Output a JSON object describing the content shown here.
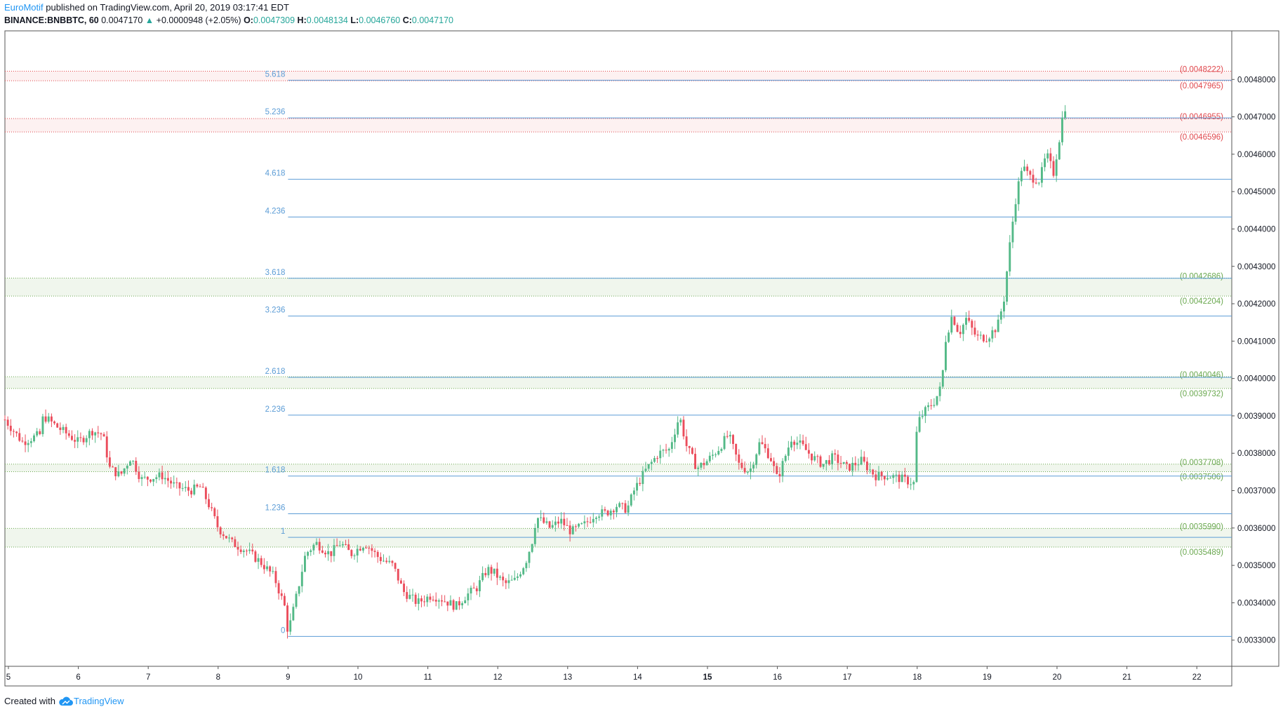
{
  "header": {
    "author": "EuroMotif",
    "published": "published on TradingView.com, April 20, 2019 03:17:41 EDT",
    "symbol": "BINANCE:BNBBTC, 60",
    "last": "0.0047170",
    "change_arrow": "▲",
    "change": "+0.0000948 (+2.05%)",
    "o_label": "O:",
    "o_value": "0.0047309",
    "h_label": "H:",
    "h_value": "0.0048134",
    "l_label": "L:",
    "l_value": "0.0046760",
    "c_label": "C:",
    "c_value": "0.0047170"
  },
  "footer": {
    "created_with": "Created with",
    "brand": "TradingView",
    "brand_icon": "tradingview-cloud-icon"
  },
  "colors": {
    "up": "#53b987",
    "down": "#eb4d5c",
    "fib_line": "#5b9cd6",
    "fib_label": "#5b9cd6",
    "red_zone": "#e0474c",
    "green_zone": "#6aa84f",
    "axis_text": "#131722"
  },
  "chart_data": {
    "type": "candlestick",
    "title": "",
    "xlabel": "",
    "ylabel": "",
    "ylim": [
      0.00323,
      0.00493
    ],
    "y_ticks": [
      0.0033,
      0.0034,
      0.0035,
      0.0036,
      0.0037,
      0.0038,
      0.0039,
      0.004,
      0.0041,
      0.0042,
      0.0043,
      0.0044,
      0.0045,
      0.0046,
      0.0047,
      0.0048
    ],
    "y_tick_labels": [
      "0.0033000",
      "0.0034000",
      "0.0035000",
      "0.0036000",
      "0.0037000",
      "0.0038000",
      "0.0039000",
      "0.0040000",
      "0.0041000",
      "0.0042000",
      "0.0043000",
      "0.0044000",
      "0.0045000",
      "0.0046000",
      "0.0047000",
      "0.0048000"
    ],
    "x_ticks": [
      {
        "label": "5",
        "day": 5,
        "bold": false
      },
      {
        "label": "6",
        "day": 6,
        "bold": false
      },
      {
        "label": "7",
        "day": 7,
        "bold": false
      },
      {
        "label": "8",
        "day": 8,
        "bold": false
      },
      {
        "label": "9",
        "day": 9,
        "bold": false
      },
      {
        "label": "10",
        "day": 10,
        "bold": false
      },
      {
        "label": "11",
        "day": 11,
        "bold": false
      },
      {
        "label": "12",
        "day": 12,
        "bold": false
      },
      {
        "label": "13",
        "day": 13,
        "bold": false
      },
      {
        "label": "14",
        "day": 14,
        "bold": false
      },
      {
        "label": "15",
        "day": 15,
        "bold": true
      },
      {
        "label": "16",
        "day": 16,
        "bold": false
      },
      {
        "label": "17",
        "day": 17,
        "bold": false
      },
      {
        "label": "18",
        "day": 18,
        "bold": false
      },
      {
        "label": "19",
        "day": 19,
        "bold": false
      },
      {
        "label": "20",
        "day": 20,
        "bold": false
      },
      {
        "label": "21",
        "day": 21,
        "bold": false
      },
      {
        "label": "22",
        "day": 22,
        "bold": false
      }
    ],
    "x_range": [
      4.95,
      22.5
    ],
    "fib_levels": [
      {
        "ratio": "0",
        "price": 0.00331
      },
      {
        "ratio": "1",
        "price": 0.003575
      },
      {
        "ratio": "1.236",
        "price": 0.003638
      },
      {
        "ratio": "1.618",
        "price": 0.003739
      },
      {
        "ratio": "2.236",
        "price": 0.003902
      },
      {
        "ratio": "2.618",
        "price": 0.004003
      },
      {
        "ratio": "3.236",
        "price": 0.004167
      },
      {
        "ratio": "3.618",
        "price": 0.004268
      },
      {
        "ratio": "4.236",
        "price": 0.004432
      },
      {
        "ratio": "4.618",
        "price": 0.004533
      },
      {
        "ratio": "5.236",
        "price": 0.004697
      },
      {
        "ratio": "5.618",
        "price": 0.004798
      }
    ],
    "fib_start_day": 9.0,
    "zones": [
      {
        "color": "red",
        "top": 0.0048222,
        "bottom": 0.0047965,
        "top_label": "(0.0048222)",
        "bottom_label": "(0.0047965)"
      },
      {
        "color": "red",
        "top": 0.0046955,
        "bottom": 0.0046596,
        "top_label": "(0.0046955)",
        "bottom_label": "(0.0046596)"
      },
      {
        "color": "green",
        "top": 0.0042686,
        "bottom": 0.0042204,
        "top_label": "(0.0042686)",
        "bottom_label": "(0.0042204)"
      },
      {
        "color": "green",
        "top": 0.0040046,
        "bottom": 0.0039732,
        "top_label": "(0.0040046)",
        "bottom_label": "(0.0039732)"
      },
      {
        "color": "green",
        "top": 0.0037708,
        "bottom": 0.0037506,
        "top_label": "(0.0037708)",
        "bottom_label": "(0.0037506)"
      },
      {
        "color": "green",
        "top": 0.003599,
        "bottom": 0.0035489,
        "top_label": "(0.0035990)",
        "bottom_label": "(0.0035489)"
      }
    ],
    "price_path": [
      [
        4.95,
        0.00389
      ],
      [
        5.2,
        0.00383
      ],
      [
        5.45,
        0.00385
      ],
      [
        5.5,
        0.0039
      ],
      [
        5.7,
        0.00387
      ],
      [
        6.0,
        0.00383
      ],
      [
        6.2,
        0.00386
      ],
      [
        6.35,
        0.00385
      ],
      [
        6.45,
        0.00376
      ],
      [
        6.6,
        0.00374
      ],
      [
        6.75,
        0.00379
      ],
      [
        6.9,
        0.00373
      ],
      [
        7.2,
        0.00374
      ],
      [
        7.4,
        0.00371
      ],
      [
        7.6,
        0.0037
      ],
      [
        7.75,
        0.00371
      ],
      [
        7.85,
        0.00367
      ],
      [
        8.0,
        0.0036
      ],
      [
        8.2,
        0.00356
      ],
      [
        8.4,
        0.00354
      ],
      [
        8.6,
        0.00351
      ],
      [
        8.8,
        0.00347
      ],
      [
        8.95,
        0.00339
      ],
      [
        9.0,
        0.00332
      ],
      [
        9.1,
        0.0034
      ],
      [
        9.25,
        0.00353
      ],
      [
        9.4,
        0.00356
      ],
      [
        9.6,
        0.00353
      ],
      [
        9.75,
        0.00356
      ],
      [
        9.9,
        0.00353
      ],
      [
        10.1,
        0.00356
      ],
      [
        10.3,
        0.00352
      ],
      [
        10.5,
        0.0035
      ],
      [
        10.65,
        0.00343
      ],
      [
        10.85,
        0.0034
      ],
      [
        11.05,
        0.00342
      ],
      [
        11.2,
        0.00341
      ],
      [
        11.4,
        0.00339
      ],
      [
        11.55,
        0.00342
      ],
      [
        11.7,
        0.00344
      ],
      [
        11.85,
        0.00349
      ],
      [
        11.95,
        0.00348
      ],
      [
        12.1,
        0.00345
      ],
      [
        12.25,
        0.00346
      ],
      [
        12.4,
        0.00351
      ],
      [
        12.5,
        0.00357
      ],
      [
        12.55,
        0.00363
      ],
      [
        12.75,
        0.0036
      ],
      [
        12.9,
        0.00362
      ],
      [
        13.05,
        0.00359
      ],
      [
        13.25,
        0.00361
      ],
      [
        13.4,
        0.00364
      ],
      [
        13.55,
        0.00364
      ],
      [
        13.7,
        0.00366
      ],
      [
        13.85,
        0.00365
      ],
      [
        13.95,
        0.0037
      ],
      [
        14.1,
        0.00375
      ],
      [
        14.3,
        0.0038
      ],
      [
        14.45,
        0.00381
      ],
      [
        14.6,
        0.0039
      ],
      [
        14.7,
        0.00382
      ],
      [
        14.85,
        0.00376
      ],
      [
        15.0,
        0.00378
      ],
      [
        15.15,
        0.00381
      ],
      [
        15.3,
        0.00385
      ],
      [
        15.45,
        0.00377
      ],
      [
        15.6,
        0.00375
      ],
      [
        15.75,
        0.00383
      ],
      [
        15.9,
        0.00379
      ],
      [
        16.0,
        0.00373
      ],
      [
        16.2,
        0.00384
      ],
      [
        16.35,
        0.00382
      ],
      [
        16.5,
        0.00379
      ],
      [
        16.65,
        0.00377
      ],
      [
        16.8,
        0.00379
      ],
      [
        17.0,
        0.00376
      ],
      [
        17.2,
        0.00378
      ],
      [
        17.4,
        0.00374
      ],
      [
        17.6,
        0.00374
      ],
      [
        17.8,
        0.00373
      ],
      [
        17.95,
        0.00372
      ],
      [
        18.0,
        0.00388
      ],
      [
        18.1,
        0.00391
      ],
      [
        18.25,
        0.00394
      ],
      [
        18.35,
        0.00398
      ],
      [
        18.4,
        0.0041
      ],
      [
        18.5,
        0.00417
      ],
      [
        18.6,
        0.00412
      ],
      [
        18.7,
        0.00416
      ],
      [
        18.85,
        0.00411
      ],
      [
        19.0,
        0.00411
      ],
      [
        19.15,
        0.00414
      ],
      [
        19.25,
        0.00422
      ],
      [
        19.3,
        0.00432
      ],
      [
        19.4,
        0.00447
      ],
      [
        19.5,
        0.00457
      ],
      [
        19.6,
        0.00454
      ],
      [
        19.75,
        0.00453
      ],
      [
        19.85,
        0.0046
      ],
      [
        19.95,
        0.00455
      ],
      [
        20.05,
        0.00466
      ],
      [
        20.1,
        0.00473
      ],
      [
        20.15,
        0.00472
      ]
    ]
  }
}
